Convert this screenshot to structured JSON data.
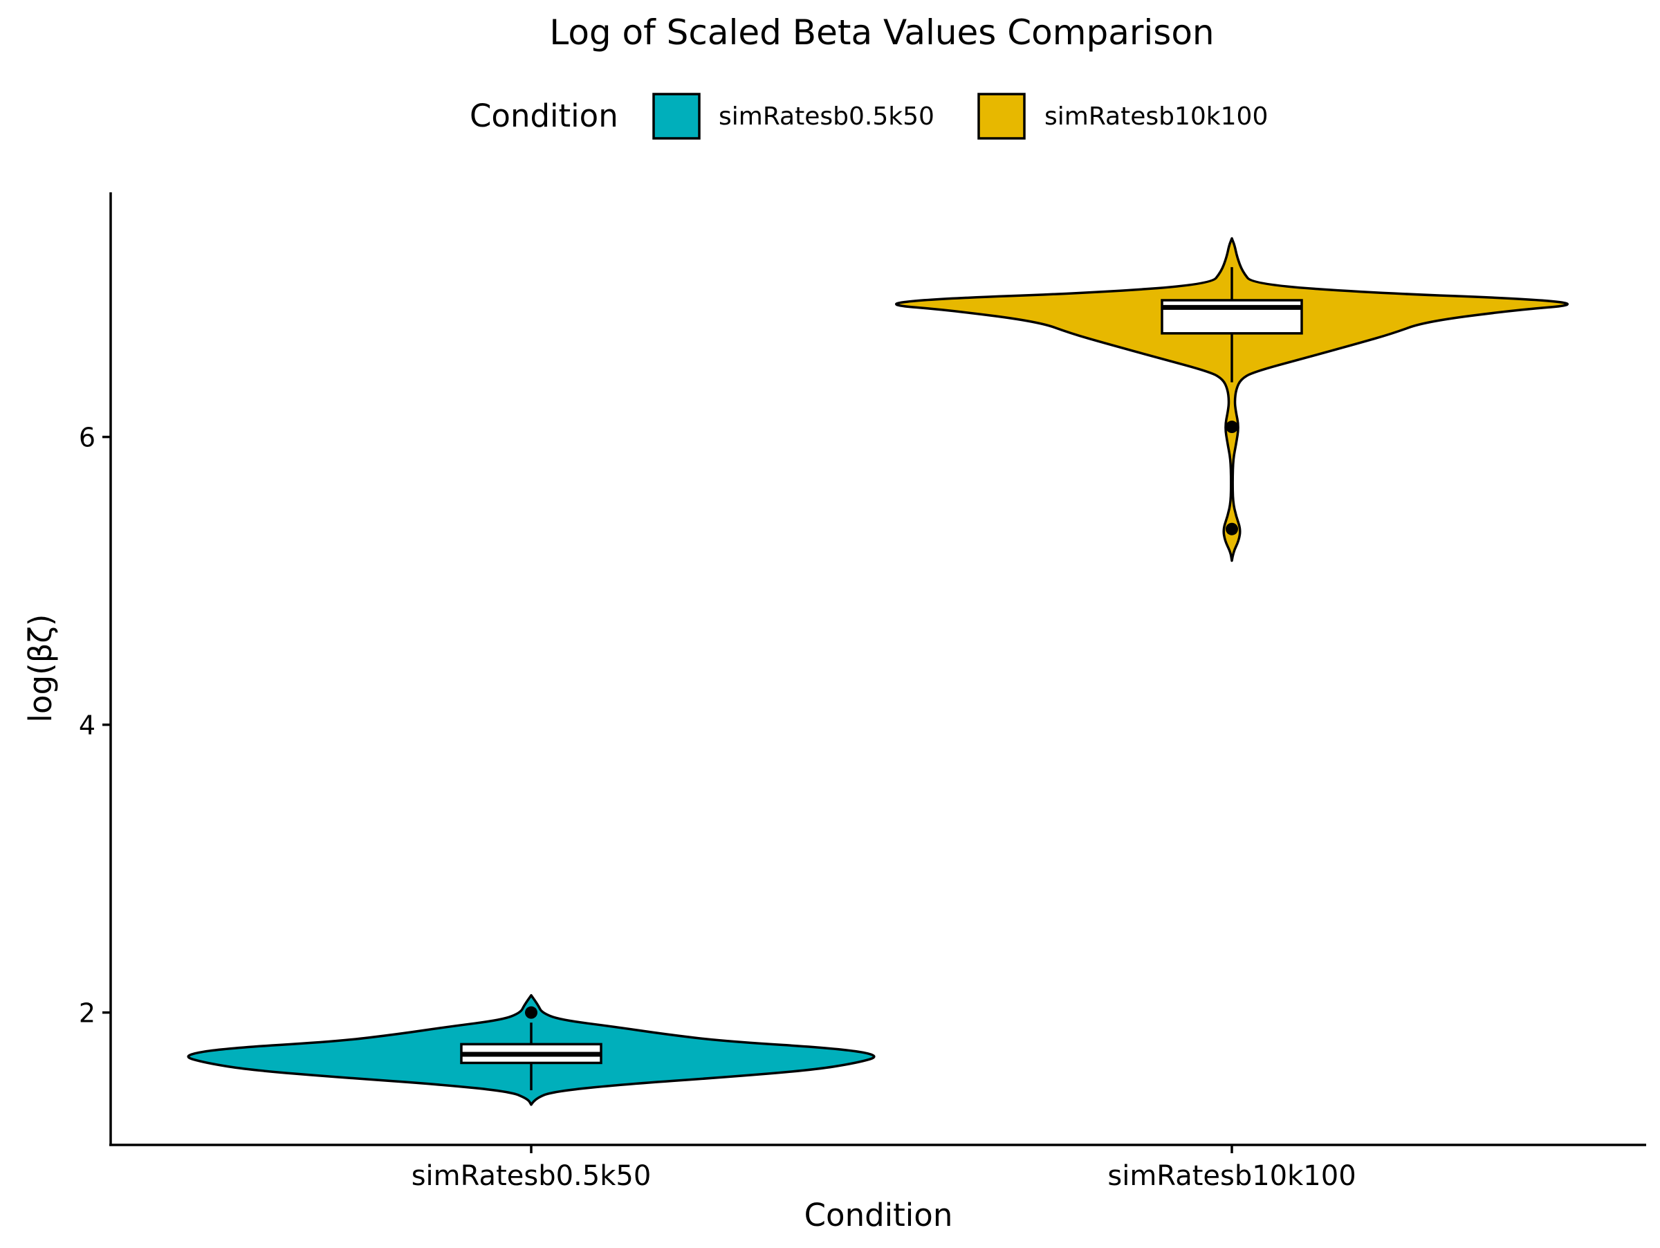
{
  "chart_data": {
    "type": "violin",
    "title": "Log of Scaled Beta Values Comparison",
    "xlabel": "Condition",
    "ylabel": "log(βζ)",
    "categories": [
      "simRatesb0.5k50",
      "simRatesb10k100"
    ],
    "legend": {
      "title": "Condition",
      "position": "top",
      "entries": [
        {
          "label": "simRatesb0.5k50",
          "color": "#00AFBB"
        },
        {
          "label": "simRatesb10k100",
          "color": "#E7B800"
        }
      ]
    },
    "ylim": [
      1.08,
      7.7
    ],
    "yticks": [
      2,
      4,
      6
    ],
    "grid": false,
    "series": [
      {
        "category": "simRatesb0.5k50",
        "color": "#00AFBB",
        "box": {
          "q1": 1.65,
          "median": 1.71,
          "q3": 1.78,
          "whisker_low": 1.46,
          "whisker_high": 1.93
        },
        "outliers": [
          2.0
        ],
        "density": [
          [
            1.36,
            0.0
          ],
          [
            1.4,
            0.01
          ],
          [
            1.45,
            0.06
          ],
          [
            1.5,
            0.26
          ],
          [
            1.55,
            0.55
          ],
          [
            1.6,
            0.8
          ],
          [
            1.65,
            0.93
          ],
          [
            1.7,
            1.0
          ],
          [
            1.75,
            0.88
          ],
          [
            1.8,
            0.55
          ],
          [
            1.85,
            0.38
          ],
          [
            1.9,
            0.24
          ],
          [
            1.95,
            0.08
          ],
          [
            2.0,
            0.03
          ],
          [
            2.05,
            0.02
          ],
          [
            2.12,
            0.0
          ]
        ]
      },
      {
        "category": "simRatesb10k100",
        "color": "#E7B800",
        "box": {
          "q1": 6.72,
          "median": 6.9,
          "q3": 6.95,
          "whisker_low": 6.38,
          "whisker_high": 7.18
        },
        "outliers": [
          6.07,
          5.36
        ],
        "density": [
          [
            5.14,
            0.0
          ],
          [
            5.2,
            0.004
          ],
          [
            5.28,
            0.02
          ],
          [
            5.36,
            0.025
          ],
          [
            5.45,
            0.012
          ],
          [
            5.55,
            0.003
          ],
          [
            5.7,
            0.002
          ],
          [
            5.85,
            0.004
          ],
          [
            5.95,
            0.012
          ],
          [
            6.07,
            0.02
          ],
          [
            6.18,
            0.011
          ],
          [
            6.25,
            0.008
          ],
          [
            6.33,
            0.012
          ],
          [
            6.4,
            0.025
          ],
          [
            6.45,
            0.06
          ],
          [
            6.55,
            0.21
          ],
          [
            6.65,
            0.36
          ],
          [
            6.72,
            0.46
          ],
          [
            6.8,
            0.55
          ],
          [
            6.88,
            0.8
          ],
          [
            6.92,
            1.0
          ],
          [
            6.96,
            0.85
          ],
          [
            7.0,
            0.41
          ],
          [
            7.06,
            0.06
          ],
          [
            7.15,
            0.03
          ],
          [
            7.25,
            0.015
          ],
          [
            7.33,
            0.008
          ],
          [
            7.38,
            0.0
          ]
        ]
      }
    ]
  }
}
